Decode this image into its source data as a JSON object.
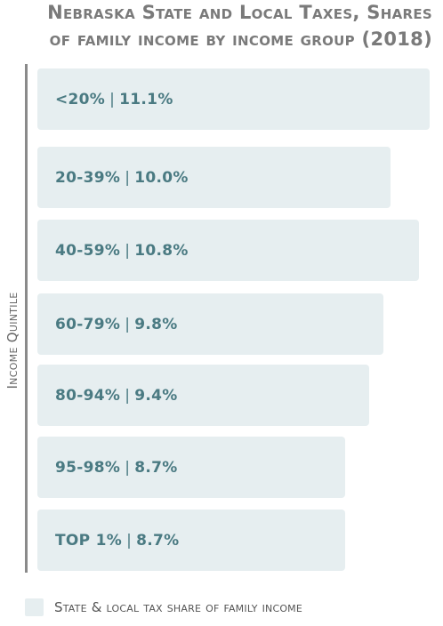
{
  "chart_data": {
    "type": "bar",
    "orientation": "horizontal",
    "title_line1": "Nebraska State and Local Taxes, Shares",
    "title_line2": "of family income by income group (2018)",
    "ylabel": "Income Quintile",
    "legend": "State & local tax share of family income",
    "categories": [
      "<20%",
      "20-39%",
      "40-59%",
      "60-79%",
      "80-94%",
      "95-98%",
      "TOP 1%"
    ],
    "values": [
      11.1,
      10.0,
      10.8,
      9.8,
      9.4,
      8.7,
      8.7
    ],
    "value_labels": [
      "11.1%",
      "10.0%",
      "10.8%",
      "9.8%",
      "9.4%",
      "8.7%",
      "8.7%"
    ],
    "color": "#e6eef0",
    "label_color": "#4a7a82"
  }
}
